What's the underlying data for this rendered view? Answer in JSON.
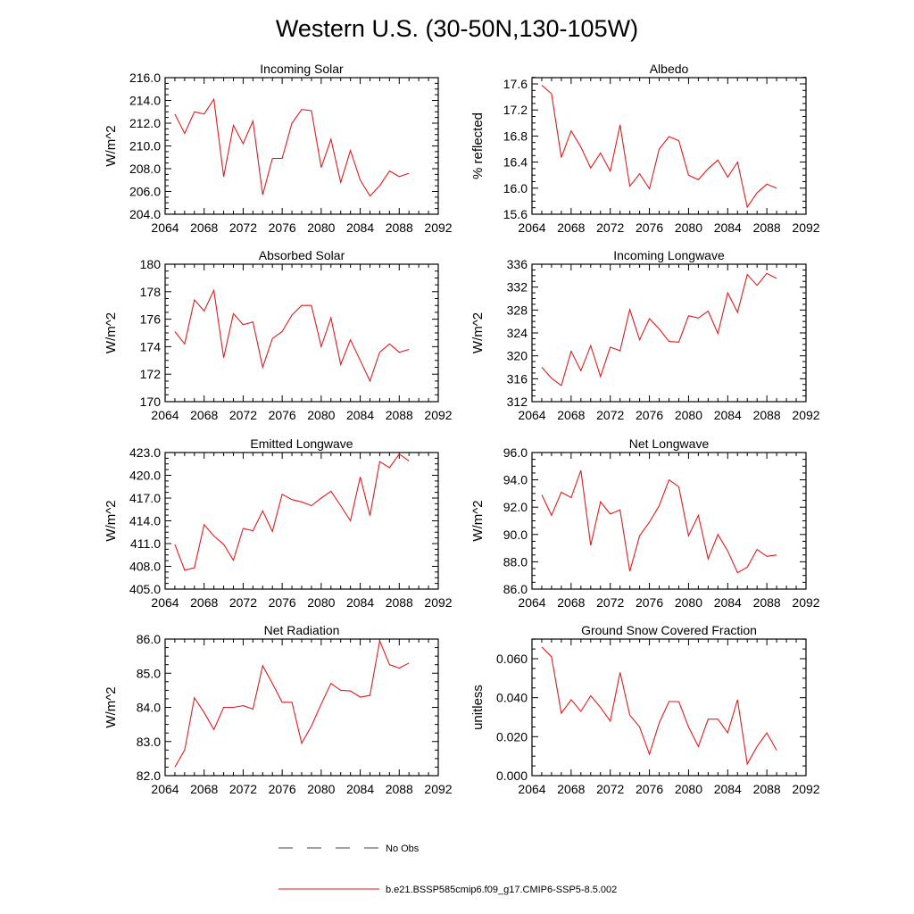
{
  "figure": {
    "title": "Western U.S. (30-50N,130-105W)"
  },
  "legend": {
    "entries": [
      {
        "label": "No Obs",
        "color": "#3a3aa0",
        "dash": true
      },
      {
        "label": "b.e21.BSSP585cmip6.f09_g17.CMIP6-SSP5-8.5.002",
        "color": "#e31a1c",
        "dash": false
      }
    ]
  },
  "chart_data": [
    {
      "type": "line",
      "title": "Incoming Solar",
      "xlabel": "",
      "ylabel": "W/m^2",
      "xlim": [
        2064,
        2092
      ],
      "ylim": [
        204.0,
        216.0
      ],
      "xticks": [
        "2064",
        "2068",
        "2072",
        "2076",
        "2080",
        "2084",
        "2088",
        "2092"
      ],
      "yticks": [
        "204.0",
        "206.0",
        "208.0",
        "210.0",
        "212.0",
        "214.0",
        "216.0"
      ],
      "series": [
        {
          "color": "#e31a1c",
          "x": [
            2065,
            2066,
            2067,
            2068,
            2069,
            2070,
            2071,
            2072,
            2073,
            2074,
            2075,
            2076,
            2077,
            2078,
            2079,
            2080,
            2081,
            2082,
            2083,
            2084,
            2085,
            2086,
            2087,
            2088,
            2089
          ],
          "y": [
            212.8,
            211.1,
            213.0,
            212.8,
            214.1,
            207.3,
            211.8,
            210.2,
            212.2,
            205.7,
            208.9,
            208.9,
            212.0,
            213.2,
            213.1,
            208.1,
            210.6,
            206.8,
            209.6,
            207.0,
            205.6,
            206.5,
            207.8,
            207.3,
            207.6
          ]
        }
      ]
    },
    {
      "type": "line",
      "title": "Albedo",
      "xlabel": "",
      "ylabel": "% reflected",
      "xlim": [
        2064,
        2092
      ],
      "ylim": [
        15.6,
        17.7
      ],
      "xticks": [
        "2064",
        "2068",
        "2072",
        "2076",
        "2080",
        "2084",
        "2088",
        "2092"
      ],
      "yticks": [
        "15.6",
        "16.0",
        "16.4",
        "16.8",
        "17.2",
        "17.6"
      ],
      "series": [
        {
          "color": "#e31a1c",
          "x": [
            2065,
            2066,
            2067,
            2068,
            2069,
            2070,
            2071,
            2072,
            2073,
            2074,
            2075,
            2076,
            2077,
            2078,
            2079,
            2080,
            2081,
            2082,
            2083,
            2084,
            2085,
            2086,
            2087,
            2088,
            2089
          ],
          "y": [
            17.58,
            17.45,
            16.47,
            16.88,
            16.63,
            16.31,
            16.54,
            16.26,
            16.97,
            16.03,
            16.22,
            15.99,
            16.6,
            16.79,
            16.73,
            16.2,
            16.13,
            16.3,
            16.43,
            16.17,
            16.4,
            15.71,
            15.93,
            16.06,
            16.0
          ]
        }
      ]
    },
    {
      "type": "line",
      "title": "Absorbed Solar",
      "xlabel": "",
      "ylabel": "W/m^2",
      "xlim": [
        2064,
        2092
      ],
      "ylim": [
        170,
        180
      ],
      "xticks": [
        "2064",
        "2068",
        "2072",
        "2076",
        "2080",
        "2084",
        "2088",
        "2092"
      ],
      "yticks": [
        "170",
        "172",
        "174",
        "176",
        "178",
        "180"
      ],
      "series": [
        {
          "color": "#e31a1c",
          "x": [
            2065,
            2066,
            2067,
            2068,
            2069,
            2070,
            2071,
            2072,
            2073,
            2074,
            2075,
            2076,
            2077,
            2078,
            2079,
            2080,
            2081,
            2082,
            2083,
            2084,
            2085,
            2086,
            2087,
            2088,
            2089
          ],
          "y": [
            175.1,
            174.2,
            177.4,
            176.6,
            178.1,
            173.2,
            176.4,
            175.6,
            175.8,
            172.5,
            174.6,
            175.1,
            176.3,
            177.0,
            177.0,
            174.0,
            176.1,
            172.7,
            174.5,
            173.0,
            171.5,
            173.6,
            174.2,
            173.6,
            173.8
          ]
        }
      ]
    },
    {
      "type": "line",
      "title": "Incoming Longwave",
      "xlabel": "",
      "ylabel": "W/m^2",
      "xlim": [
        2064,
        2092
      ],
      "ylim": [
        312,
        336
      ],
      "xticks": [
        "2064",
        "2068",
        "2072",
        "2076",
        "2080",
        "2084",
        "2088",
        "2092"
      ],
      "yticks": [
        "312",
        "316",
        "320",
        "324",
        "328",
        "332",
        "336"
      ],
      "series": [
        {
          "color": "#e31a1c",
          "x": [
            2065,
            2066,
            2067,
            2068,
            2069,
            2070,
            2071,
            2072,
            2073,
            2074,
            2075,
            2076,
            2077,
            2078,
            2079,
            2080,
            2081,
            2082,
            2083,
            2084,
            2085,
            2086,
            2087,
            2088,
            2089
          ],
          "y": [
            318.0,
            316.1,
            314.8,
            320.8,
            317.4,
            321.8,
            316.4,
            321.5,
            320.9,
            328.1,
            322.8,
            326.5,
            324.7,
            322.5,
            322.4,
            327.0,
            326.6,
            327.8,
            323.9,
            331.0,
            327.6,
            334.2,
            332.3,
            334.4,
            333.5
          ]
        }
      ]
    },
    {
      "type": "line",
      "title": "Emitted Longwave",
      "xlabel": "",
      "ylabel": "W/m^2",
      "xlim": [
        2064,
        2092
      ],
      "ylim": [
        405.0,
        423.0
      ],
      "xticks": [
        "2064",
        "2068",
        "2072",
        "2076",
        "2080",
        "2084",
        "2088",
        "2092"
      ],
      "yticks": [
        "405.0",
        "408.0",
        "411.0",
        "414.0",
        "417.0",
        "420.0",
        "423.0"
      ],
      "series": [
        {
          "color": "#e31a1c",
          "x": [
            2065,
            2066,
            2067,
            2068,
            2069,
            2070,
            2071,
            2072,
            2073,
            2074,
            2075,
            2076,
            2077,
            2078,
            2079,
            2080,
            2081,
            2082,
            2083,
            2084,
            2085,
            2086,
            2087,
            2088,
            2089
          ],
          "y": [
            410.9,
            407.5,
            407.8,
            413.5,
            412.0,
            410.9,
            408.8,
            413.0,
            412.7,
            415.3,
            412.6,
            417.5,
            416.8,
            416.5,
            416.0,
            417.0,
            417.9,
            416.0,
            414.0,
            419.8,
            414.7,
            421.8,
            421.0,
            422.8,
            421.9
          ]
        }
      ]
    },
    {
      "type": "line",
      "title": "Net Longwave",
      "xlabel": "",
      "ylabel": "W/m^2",
      "xlim": [
        2064,
        2092
      ],
      "ylim": [
        86.0,
        96.0
      ],
      "xticks": [
        "2064",
        "2068",
        "2072",
        "2076",
        "2080",
        "2084",
        "2088",
        "2092"
      ],
      "yticks": [
        "86.0",
        "88.0",
        "90.0",
        "92.0",
        "94.0",
        "96.0"
      ],
      "series": [
        {
          "color": "#e31a1c",
          "x": [
            2065,
            2066,
            2067,
            2068,
            2069,
            2070,
            2071,
            2072,
            2073,
            2074,
            2075,
            2076,
            2077,
            2078,
            2079,
            2080,
            2081,
            2082,
            2083,
            2084,
            2085,
            2086,
            2087,
            2088,
            2089
          ],
          "y": [
            92.9,
            91.4,
            93.1,
            92.7,
            94.7,
            89.2,
            92.4,
            91.5,
            91.8,
            87.3,
            89.9,
            90.9,
            92.1,
            94.0,
            93.5,
            89.9,
            91.4,
            88.2,
            90.0,
            88.8,
            87.2,
            87.6,
            88.9,
            88.4,
            88.5
          ]
        }
      ]
    },
    {
      "type": "line",
      "title": "Net Radiation",
      "xlabel": "",
      "ylabel": "W/m^2",
      "xlim": [
        2064,
        2092
      ],
      "ylim": [
        82.0,
        86.0
      ],
      "xticks": [
        "2064",
        "2068",
        "2072",
        "2076",
        "2080",
        "2084",
        "2088",
        "2092"
      ],
      "yticks": [
        "82.0",
        "83.0",
        "84.0",
        "85.0",
        "86.0"
      ],
      "series": [
        {
          "color": "#e31a1c",
          "x": [
            2065,
            2066,
            2067,
            2068,
            2069,
            2070,
            2071,
            2072,
            2073,
            2074,
            2075,
            2076,
            2077,
            2078,
            2079,
            2080,
            2081,
            2082,
            2083,
            2084,
            2085,
            2086,
            2087,
            2088,
            2089
          ],
          "y": [
            82.25,
            82.75,
            84.28,
            83.85,
            83.35,
            84.0,
            84.0,
            84.05,
            83.95,
            85.22,
            84.7,
            84.15,
            84.15,
            82.95,
            83.45,
            84.1,
            84.7,
            84.5,
            84.48,
            84.3,
            84.35,
            85.95,
            85.25,
            85.15,
            85.3
          ]
        }
      ]
    },
    {
      "type": "line",
      "title": "Ground Snow Covered Fraction",
      "xlabel": "",
      "ylabel": "unitless",
      "xlim": [
        2064,
        2092
      ],
      "ylim": [
        0.0,
        0.07
      ],
      "xticks": [
        "2064",
        "2068",
        "2072",
        "2076",
        "2080",
        "2084",
        "2088",
        "2092"
      ],
      "yticks": [
        "0.000",
        "0.020",
        "0.040",
        "0.060"
      ],
      "series": [
        {
          "color": "#e31a1c",
          "x": [
            2065,
            2066,
            2067,
            2068,
            2069,
            2070,
            2071,
            2072,
            2073,
            2074,
            2075,
            2076,
            2077,
            2078,
            2079,
            2080,
            2081,
            2082,
            2083,
            2084,
            2085,
            2086,
            2087,
            2088,
            2089
          ],
          "y": [
            0.066,
            0.061,
            0.032,
            0.039,
            0.033,
            0.041,
            0.035,
            0.028,
            0.053,
            0.031,
            0.025,
            0.011,
            0.027,
            0.038,
            0.038,
            0.025,
            0.015,
            0.029,
            0.029,
            0.022,
            0.039,
            0.006,
            0.015,
            0.022,
            0.013
          ]
        }
      ]
    }
  ]
}
